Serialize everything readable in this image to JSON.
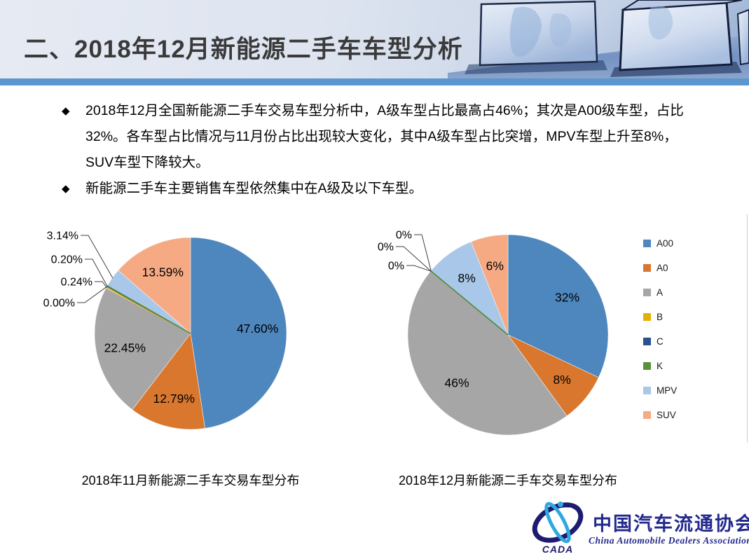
{
  "header": {
    "title": "二、2018年12月新能源二手车车型分析"
  },
  "bullets": [
    {
      "marker": "◆",
      "text": "2018年12月全国新能源二手车交易车型分析中，A级车型占比最高占46%；其次是A00级车型，占比32%。各车型占比情况与11月份占比出现较大变化，其中A级车型占比突增，MPV车型上升至8%，SUV车型下降较大。"
    },
    {
      "marker": "◆",
      "text": "新能源二手车主要销售车型依然集中在A级及以下车型。"
    }
  ],
  "chart_data": [
    {
      "type": "pie",
      "title": "2018年11月新能源二手车交易车型分布",
      "categories": [
        "A00",
        "A0",
        "A",
        "B",
        "C",
        "K",
        "MPV",
        "SUV"
      ],
      "values": [
        47.6,
        12.79,
        22.45,
        0.24,
        0.2,
        0.0,
        3.14,
        13.59
      ],
      "labels": [
        "47.60%",
        "12.79%",
        "22.45%",
        "0.24%",
        "0.20%",
        "0.00%",
        "3.14%",
        "13.59%"
      ],
      "callout_order": [
        "MPV",
        "C",
        "B",
        "K"
      ],
      "start_angle_deg": 0,
      "direction": "clockwise",
      "legend_position": "right"
    },
    {
      "type": "pie",
      "title": "2018年12月新能源二手车交易车型分布",
      "categories": [
        "A00",
        "A0",
        "A",
        "B",
        "C",
        "K",
        "MPV",
        "SUV"
      ],
      "values": [
        32,
        8,
        46,
        0,
        0,
        0,
        8,
        6
      ],
      "labels": [
        "32%",
        "8%",
        "46%",
        "0%",
        "0%",
        "0%",
        "8%",
        "6%"
      ],
      "callout_order": [
        "B",
        "C",
        "K"
      ],
      "start_angle_deg": 0,
      "direction": "clockwise",
      "legend_position": "right"
    }
  ],
  "series_colors": {
    "A00": "#4E86BE",
    "A0": "#D9772E",
    "A": "#A6A6A6",
    "B": "#E2B007",
    "C": "#2B4F8F",
    "K": "#58913A",
    "MPV": "#A9C7E9",
    "SUV": "#F5AA84"
  },
  "legend": {
    "items": [
      "A00",
      "A0",
      "A",
      "B",
      "C",
      "K",
      "MPV",
      "SUV"
    ]
  },
  "logo": {
    "acronym": "CADA",
    "cn_name": "中国汽车流通协会",
    "en_name": "China Automobile Dealers Association"
  },
  "theme": {
    "header_bar_color": "#5B96CE",
    "title_color": "#3A3A3A",
    "callout_line_color": "#404040"
  }
}
